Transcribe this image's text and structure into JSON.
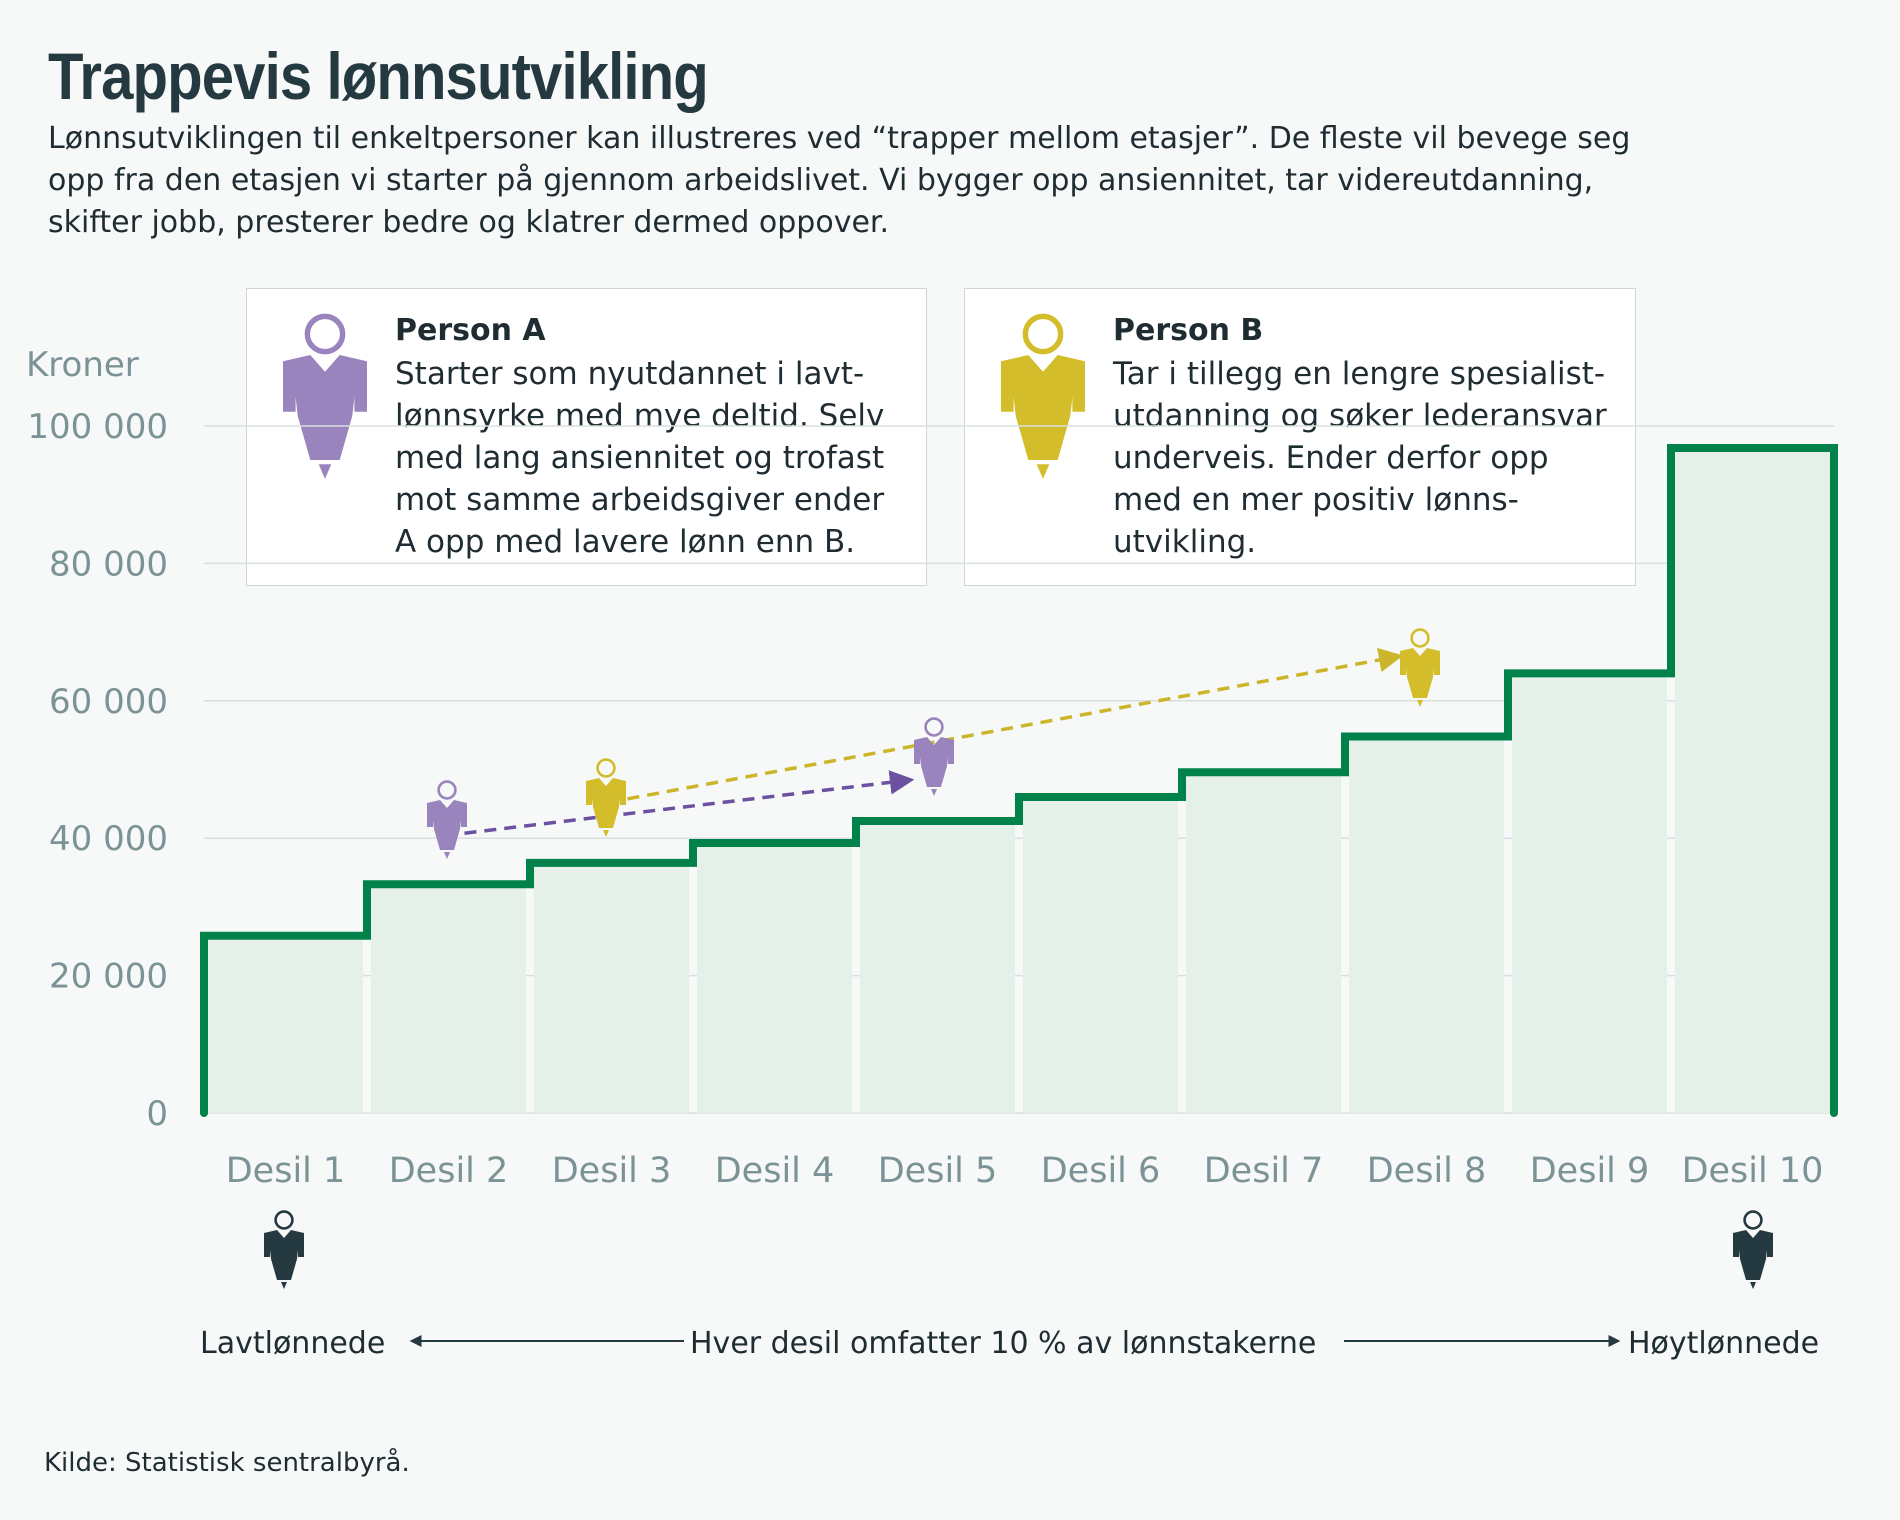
{
  "title": "Trappevis lønnsutvikling",
  "intro": "Lønnsutviklingen til enkeltpersoner kan illustreres ved “trapper mellom etasjer”. De fleste vil bevege seg opp fra den etasjen vi starter på gjennom arbeidslivet. Vi bygger opp ansiennitet, tar videreutdanning, skifter jobb, presterer bedre og klatrer dermed oppover.",
  "person_a": {
    "name": "Person A",
    "text": "Starter som nyutdannet i lavt-\nlønnsyrke med mye deltid. Selv\nmed lang ansiennitet og trofast\nmot samme arbeidsgiver ender\nA opp med lavere lønn enn B.",
    "color": "#9a84bd",
    "arrow_color": "#6b51a0"
  },
  "person_b": {
    "name": "Person B",
    "text": "Tar i tillegg en lengre spesialist-\nutdanning og søker lederansvar\nunderveis. Ender derfor opp\nmed en mer positiv lønns-\nutvikling.",
    "color": "#d4bd2b",
    "arrow_color": "#cbb52a"
  },
  "bottom": {
    "left_label": "Lavtlønnede",
    "middle_label": "Hver desil omfatter 10 % av lønnstakerne",
    "right_label": "Høytlønnede",
    "figure_color": "#253a40"
  },
  "source": "Kilde: Statistisk sentralbyrå.",
  "chart_data": {
    "type": "area",
    "ylabel": "Kroner",
    "ylim": [
      0,
      100000
    ],
    "yticks": [
      0,
      20000,
      40000,
      60000,
      80000,
      100000
    ],
    "ytick_labels": [
      "0",
      "20 000",
      "40 000",
      "60 000",
      "80 000",
      "100 000"
    ],
    "categories": [
      "Desil 1",
      "Desil 2",
      "Desil 3",
      "Desil 4",
      "Desil 5",
      "Desil 6",
      "Desil 7",
      "Desil 8",
      "Desil 9",
      "Desil 10"
    ],
    "values": [
      25800,
      33300,
      36400,
      39300,
      42500,
      46000,
      49600,
      54800,
      64000,
      96800
    ],
    "grid": true,
    "line_color": "#00824a",
    "fill_color": "#e5f1e8",
    "annotations": [
      {
        "person": "A",
        "from_x": 2,
        "from_y": 40000,
        "to_x": 5,
        "to_y": 50500
      },
      {
        "person": "B",
        "from_x": 3,
        "from_y": 45000,
        "to_x": 8,
        "to_y": 68500
      }
    ]
  }
}
